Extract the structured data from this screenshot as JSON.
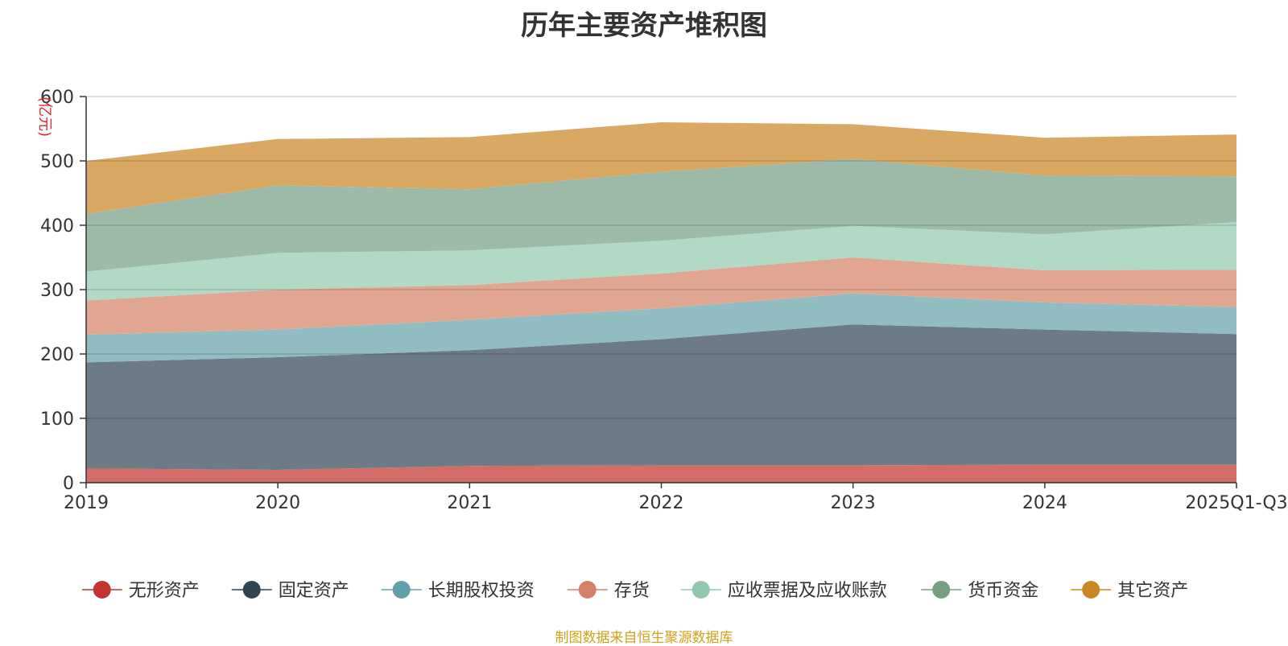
{
  "chart_data": {
    "type": "area",
    "stacked": true,
    "title": "历年主要资产堆积图",
    "unit_label": "(亿元)",
    "categories": [
      "2019",
      "2020",
      "2021",
      "2022",
      "2023",
      "2024",
      "2025Q1-Q3"
    ],
    "ylim": [
      0,
      600
    ],
    "yticks": [
      0,
      100,
      200,
      300,
      400,
      500,
      600
    ],
    "grid": true,
    "legend_position": "bottom",
    "series": [
      {
        "name": "无形资产",
        "color": "#c23531",
        "area_color": "#d46c69",
        "values": [
          22,
          20,
          26,
          27,
          27,
          28,
          28
        ]
      },
      {
        "name": "固定资产",
        "color": "#2f4554",
        "area_color": "#6d7b86",
        "values": [
          165,
          175,
          180,
          196,
          219,
          210,
          203
        ]
      },
      {
        "name": "长期股权投资",
        "color": "#61a0a8",
        "area_color": "#91bcc2",
        "values": [
          43,
          43,
          47,
          48,
          48,
          42,
          42
        ]
      },
      {
        "name": "存货",
        "color": "#d48265",
        "area_color": "#e1a692",
        "values": [
          53,
          62,
          54,
          54,
          56,
          50,
          58
        ]
      },
      {
        "name": "应收票据及应收账款",
        "color": "#91c7ae",
        "area_color": "#b2d8c6",
        "values": [
          45,
          57,
          54,
          51,
          49,
          56,
          74
        ]
      },
      {
        "name": "货币资金",
        "color": "#749f83",
        "area_color": "#9dbba8",
        "values": [
          90,
          105,
          95,
          107,
          104,
          91,
          71
        ]
      },
      {
        "name": "其它资产",
        "color": "#ca8622",
        "area_color": "#d9a964",
        "values": [
          82,
          72,
          81,
          77,
          54,
          59,
          65
        ]
      }
    ]
  },
  "source_note": "制图数据来自恒生聚源数据库"
}
